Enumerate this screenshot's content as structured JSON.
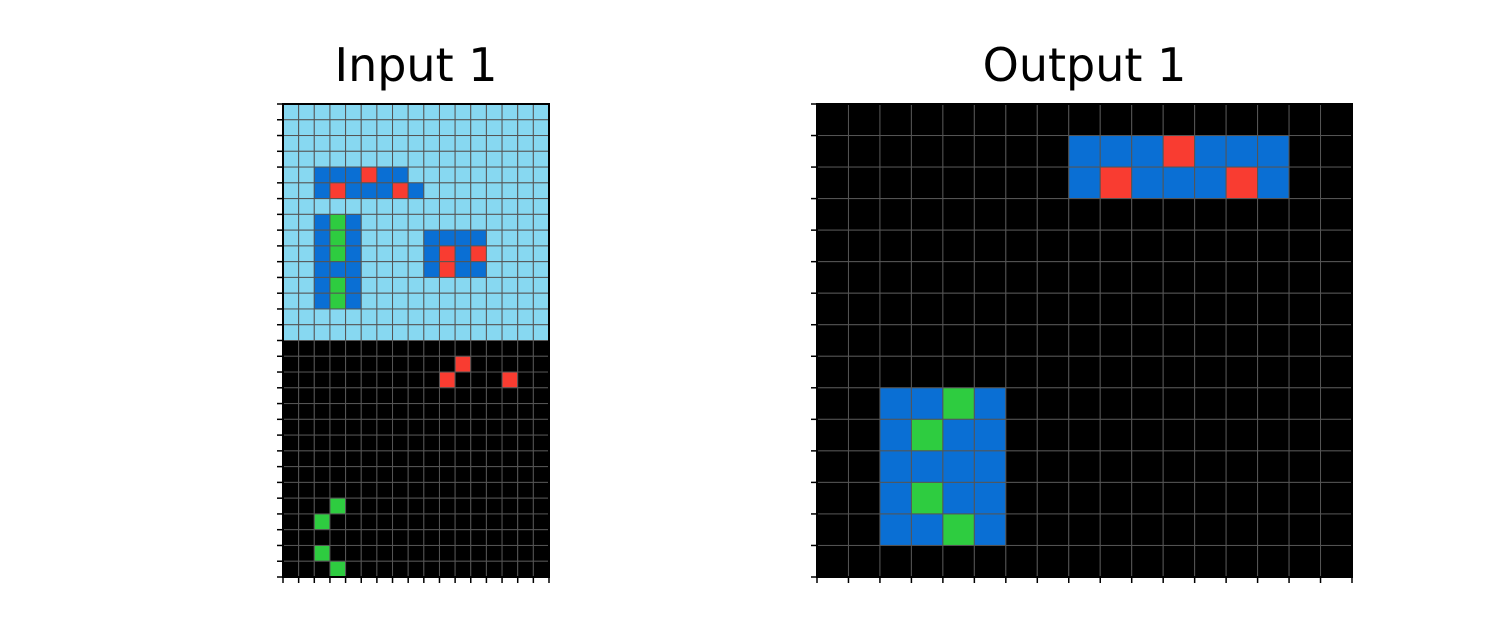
{
  "panels": {
    "input": {
      "title": "Input 1"
    },
    "output": {
      "title": "Output 1"
    }
  },
  "palette": {
    "0": "#000000",
    "1": "#0a6fd4",
    "2": "#f93c31",
    "3": "#2ecc40",
    "8": "#87d8f1"
  },
  "grid_line_color": "#555555",
  "input_grid": [
    "88888888888888888",
    "88888888888888888",
    "88888888888888888",
    "88888888888888888",
    "88111211888888888",
    "88121112188888888",
    "88888888888888888",
    "88131888888888888",
    "88131888811118888",
    "88131888812128888",
    "88111888812118888",
    "88131888888888888",
    "88131888888888888",
    "88888888888888888",
    "88888888888888888",
    "00000000000000000",
    "00000000000200000",
    "00000000002000200",
    "00000000000000000",
    "00000000000000000",
    "00000000000000000",
    "00000000000000000",
    "00000000000000000",
    "00000000000000000",
    "00000000000000000",
    "00030000000000000",
    "00300000000000000",
    "00000000000000000",
    "00300000000000000",
    "00030000000000000"
  ],
  "output_grid": [
    "00000000000000000",
    "00000000111211100",
    "00000000121112100",
    "00000000000000000",
    "00000000000000000",
    "00000000000000000",
    "00000000000000000",
    "00000000000000000",
    "00000000000000000",
    "00113100000000000",
    "00131100000000000",
    "00111100000000000",
    "00131100000000000",
    "00113100000000000",
    "00000000000000000"
  ]
}
